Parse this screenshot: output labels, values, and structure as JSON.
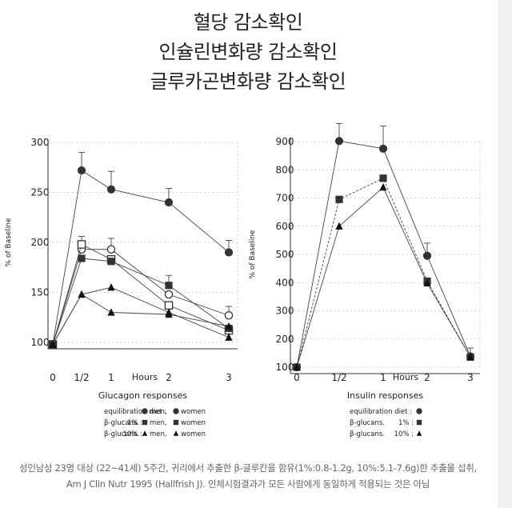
{
  "titles": [
    "혈당 감소확인",
    "인슐린변화량 감소확인",
    "글루카곤변화량 감소확인"
  ],
  "chart_data": [
    {
      "type": "line",
      "xlabel": "Glucagon responses",
      "ylabel": "% of Baseline",
      "x_unit": "Hours",
      "x_ticks": [
        "0",
        "1/2",
        "1",
        "2",
        "3"
      ],
      "x": [
        0,
        0.5,
        1,
        2,
        3
      ],
      "ylim": [
        100,
        300
      ],
      "y_ticks": [
        100,
        150,
        200,
        250,
        300
      ],
      "grid": "dashed",
      "series": [
        {
          "name": "equilibration diet : men",
          "marker": "filled-circle",
          "dash": false,
          "values": [
            98,
            272,
            253,
            240,
            190
          ],
          "error": [
            0,
            18,
            18,
            14,
            12
          ]
        },
        {
          "name": "equilibration diet : women",
          "marker": "open-circle",
          "dash": false,
          "values": [
            98,
            193,
            193,
            148,
            127
          ],
          "error": [
            0,
            0,
            11,
            0,
            9
          ]
        },
        {
          "name": "β-glucans. 1% : men",
          "marker": "open-square",
          "dash": false,
          "values": [
            98,
            198,
            183,
            137,
            112
          ],
          "error": [
            0,
            8,
            0,
            0,
            0
          ]
        },
        {
          "name": "β-glucans. 1% : women",
          "marker": "filled-square",
          "dash": false,
          "values": [
            98,
            184,
            181,
            157,
            114
          ],
          "error": [
            0,
            0,
            0,
            10,
            0
          ]
        },
        {
          "name": "β-glucans. 10% : men",
          "marker": "filled-triangle",
          "dash": false,
          "values": [
            98,
            148,
            130,
            128,
            116
          ],
          "error": [
            0,
            0,
            0,
            0,
            0
          ]
        },
        {
          "name": "β-glucans. 10% : women",
          "marker": "filled-triangle",
          "dash": false,
          "values": [
            98,
            148,
            155,
            130,
            105
          ],
          "error": [
            0,
            0,
            0,
            0,
            0
          ]
        }
      ],
      "legend": [
        {
          "label": "equilibration diet :",
          "mid": "",
          "items": [
            {
              "marker": "filled-circle",
              "text": "men,"
            },
            {
              "marker": "filled-circle",
              "text": "women"
            }
          ]
        },
        {
          "label": "β-glucans.",
          "mid": "1% :",
          "items": [
            {
              "marker": "filled-square",
              "text": "men,"
            },
            {
              "marker": "filled-square",
              "text": "women"
            }
          ]
        },
        {
          "label": "β-glucans.",
          "mid": "10% :",
          "items": [
            {
              "marker": "filled-triangle",
              "text": "men,"
            },
            {
              "marker": "filled-triangle",
              "text": "women"
            }
          ]
        }
      ]
    },
    {
      "type": "line",
      "xlabel": "Insulin responses",
      "ylabel": "% of Baseline",
      "x_unit": "Hours",
      "x_ticks": [
        "0",
        "1/2",
        "1",
        "2",
        "3"
      ],
      "x": [
        0,
        0.5,
        1,
        2,
        3
      ],
      "ylim": [
        100,
        900
      ],
      "y_ticks": [
        100,
        200,
        300,
        400,
        500,
        600,
        700,
        800,
        900
      ],
      "grid": "dashed",
      "series": [
        {
          "name": "equilibration diet",
          "marker": "filled-circle",
          "dash": false,
          "values": [
            100,
            902,
            875,
            495,
            138
          ],
          "error": [
            0,
            62,
            80,
            45,
            30
          ]
        },
        {
          "name": "β-glucans. 1%",
          "marker": "filled-square",
          "dash": true,
          "values": [
            100,
            695,
            770,
            405,
            136
          ],
          "error": [
            0,
            0,
            0,
            0,
            0
          ]
        },
        {
          "name": "β-glucans. 10%",
          "marker": "filled-triangle",
          "dash": false,
          "values": [
            100,
            600,
            738,
            398,
            136
          ],
          "error": [
            0,
            0,
            0,
            0,
            0
          ]
        }
      ],
      "legend": [
        {
          "label": "equilibration diet :",
          "mid": "",
          "items": [
            {
              "marker": "filled-circle",
              "text": ""
            }
          ]
        },
        {
          "label": "β-glucans.",
          "mid": "1% :",
          "items": [
            {
              "marker": "filled-square",
              "text": ""
            }
          ]
        },
        {
          "label": "β-glucans.",
          "mid": "10% :",
          "items": [
            {
              "marker": "filled-triangle",
              "text": ""
            }
          ]
        }
      ]
    }
  ],
  "footnote": [
    "성인남성 23명 대상 (22~41세) 5주간, 귀리에서 추출한 β-글루칸을 함유(1%:0.8-1.2g, 10%:5.1-7.6g)한 추출물 섭취,",
    "Am J Clin Nutr 1995 (Hallfrish J). 인체시험결과가 모든 사람에게 동일하게 적용되는 것은 아님"
  ]
}
